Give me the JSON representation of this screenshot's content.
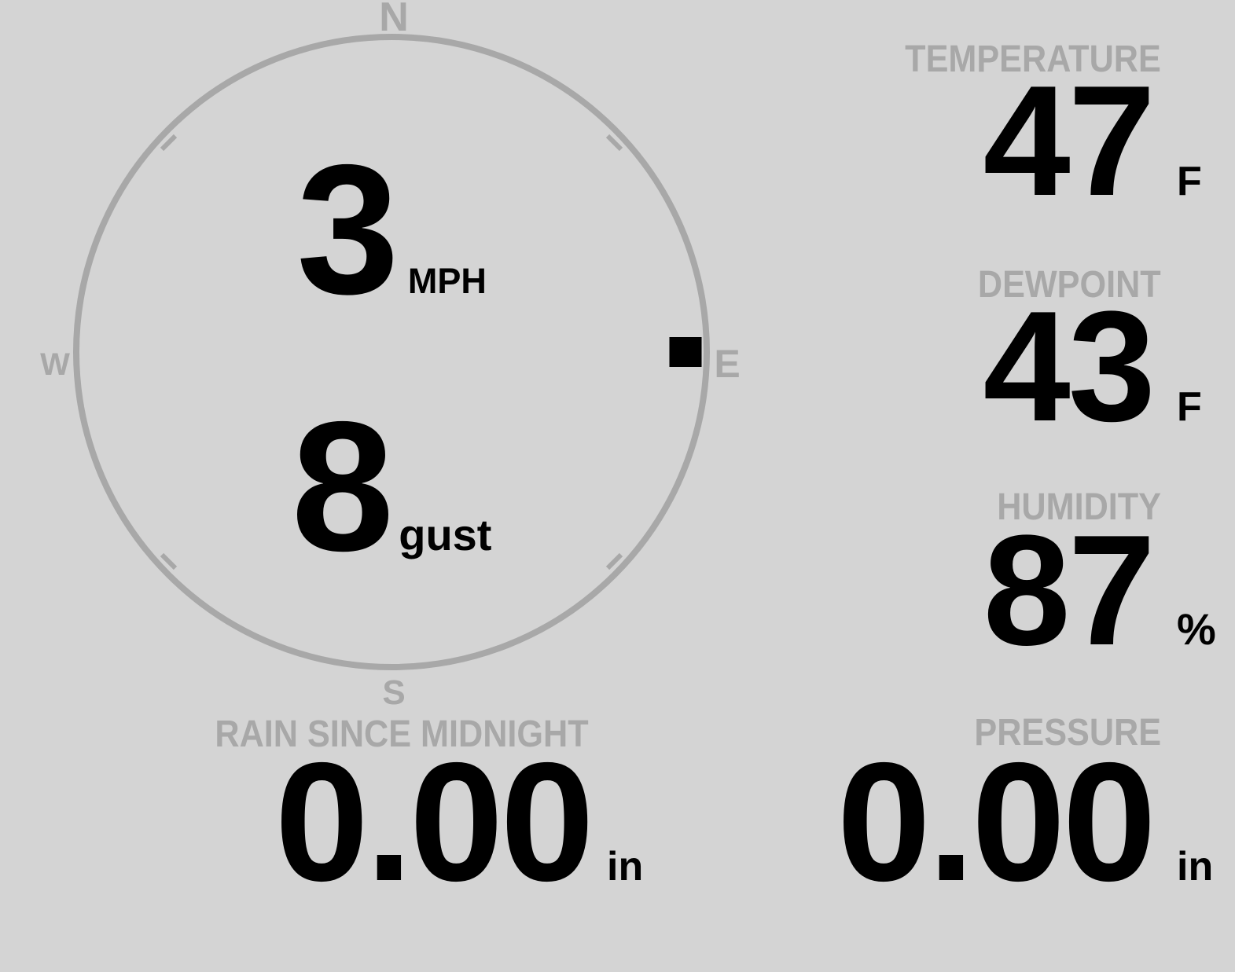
{
  "colors": {
    "background": "#d4d4d4",
    "muted_gray": "#a8a8a8",
    "ink": "#000000"
  },
  "compass": {
    "cardinal_labels": {
      "north": "N",
      "east": "E",
      "south": "S",
      "west": "W"
    },
    "wind_direction_cardinal": "E",
    "wind_direction_deg": 90,
    "speed": {
      "value": "3",
      "unit": "MPH"
    },
    "gust": {
      "value": "8",
      "unit": "gust"
    }
  },
  "metrics": {
    "temperature": {
      "label": "TEMPERATURE",
      "value": "47",
      "unit": "F"
    },
    "dewpoint": {
      "label": "DEWPOINT",
      "value": "43",
      "unit": "F"
    },
    "humidity": {
      "label": "HUMIDITY",
      "value": "87",
      "unit": "%"
    },
    "rain_since_midnight": {
      "label": "RAIN SINCE MIDNIGHT",
      "value": "0.00",
      "unit": "in"
    },
    "pressure": {
      "label": "PRESSURE",
      "value": "0.00",
      "unit": "in"
    }
  }
}
